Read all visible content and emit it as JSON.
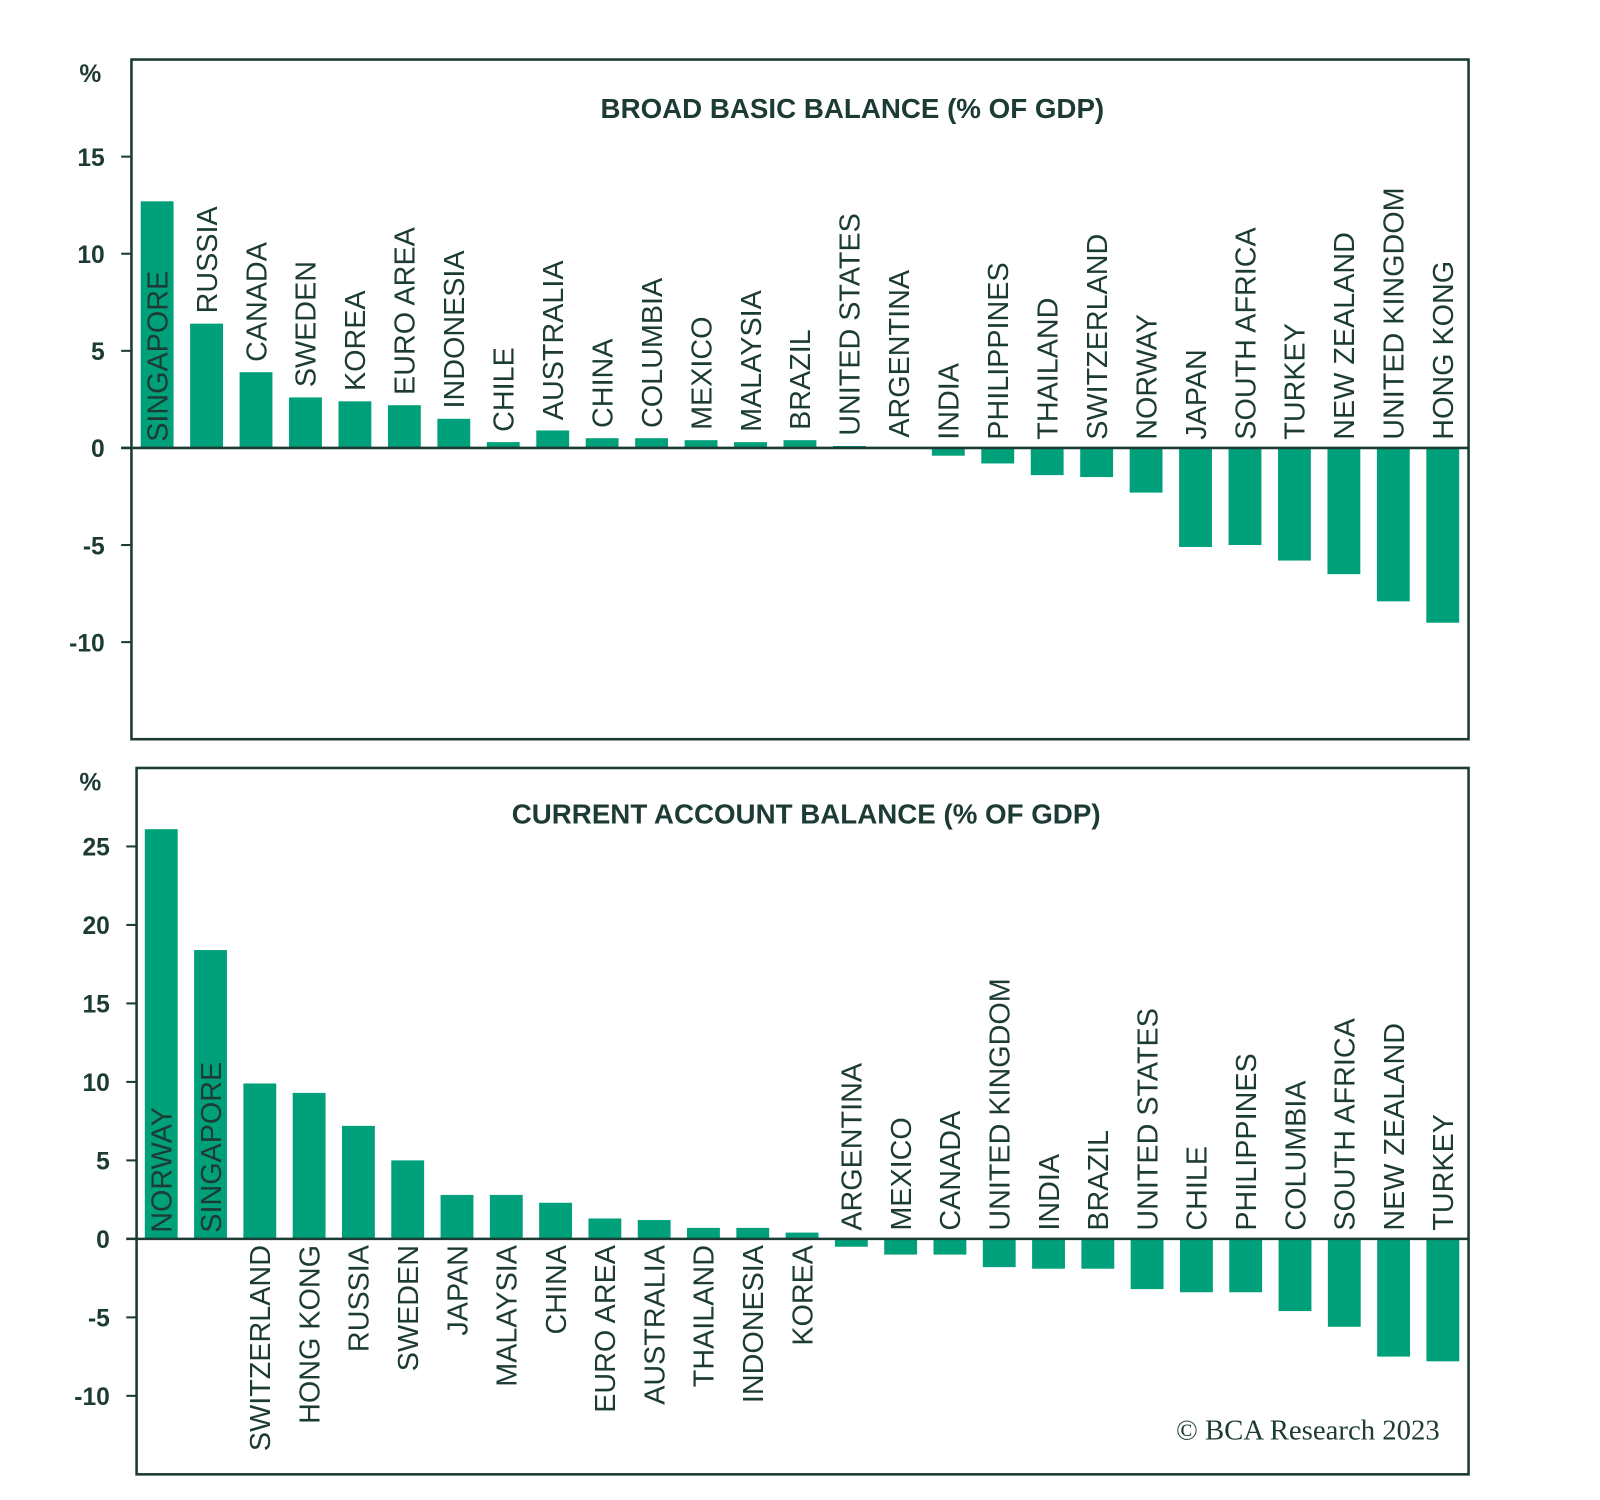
{
  "colors": {
    "bar": "#00a07a",
    "text": "#1d3b35",
    "inside_label": "#ffffff"
  },
  "copyright": "© BCA Research 2023",
  "chart_data": [
    {
      "type": "bar",
      "title": "BROAD BASIC BALANCE (% OF GDP)",
      "ylabel": "%",
      "ylim": [
        -15,
        20
      ],
      "yticks": [
        -10,
        -5,
        0,
        5,
        10,
        15
      ],
      "grid": false,
      "categories": [
        "SINGAPORE",
        "RUSSIA",
        "CANADA",
        "SWEDEN",
        "KOREA",
        "EURO AREA",
        "INDONESIA",
        "CHILE",
        "AUSTRALIA",
        "CHINA",
        "COLUMBIA",
        "MEXICO",
        "MALAYSIA",
        "BRAZIL",
        "UNITED STATES",
        "ARGENTINA",
        "INDIA",
        "PHILIPPINES",
        "THAILAND",
        "SWITZERLAND",
        "NORWAY",
        "JAPAN",
        "SOUTH AFRICA",
        "TURKEY",
        "NEW ZEALAND",
        "UNITED KINGDOM",
        "HONG KONG"
      ],
      "values": [
        12.7,
        6.4,
        3.9,
        2.6,
        2.4,
        2.2,
        1.5,
        0.3,
        0.9,
        0.5,
        0.5,
        0.4,
        0.3,
        0.4,
        0.1,
        0.0,
        -0.4,
        -0.8,
        -1.4,
        -1.5,
        -2.3,
        -5.1,
        -5.0,
        -5.8,
        -6.5,
        -7.9,
        -9.0
      ]
    },
    {
      "type": "bar",
      "title": "CURRENT ACCOUNT BALANCE (% OF GDP)",
      "ylabel": "%",
      "ylim": [
        -15,
        30
      ],
      "yticks": [
        -10,
        -5,
        0,
        5,
        10,
        15,
        20,
        25
      ],
      "grid": false,
      "categories": [
        "NORWAY",
        "SINGAPORE",
        "SWITZERLAND",
        "HONG KONG",
        "RUSSIA",
        "SWEDEN",
        "JAPAN",
        "MALAYSIA",
        "CHINA",
        "EURO AREA",
        "AUSTRALIA",
        "THAILAND",
        "INDONESIA",
        "KOREA",
        "ARGENTINA",
        "MEXICO",
        "CANADA",
        "UNITED KINGDOM",
        "INDIA",
        "BRAZIL",
        "UNITED STATES",
        "CHILE",
        "PHILIPPINES",
        "COLUMBIA",
        "SOUTH AFRICA",
        "NEW ZEALAND",
        "TURKEY"
      ],
      "values": [
        26.1,
        18.4,
        9.9,
        9.3,
        7.2,
        5.0,
        2.8,
        2.8,
        2.3,
        1.3,
        1.2,
        0.7,
        0.7,
        0.4,
        -0.5,
        -1.0,
        -1.0,
        -1.8,
        -1.9,
        -1.9,
        -3.2,
        -3.4,
        -3.4,
        -4.6,
        -5.6,
        -7.5,
        -7.8
      ]
    }
  ]
}
